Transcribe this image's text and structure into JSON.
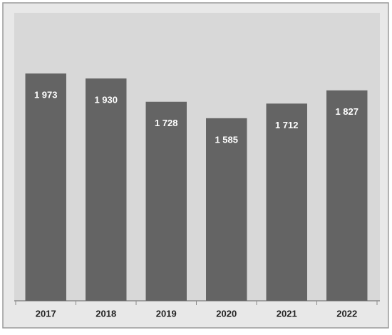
{
  "chart_data": {
    "type": "bar",
    "categories": [
      "2017",
      "2018",
      "2019",
      "2020",
      "2021",
      "2022"
    ],
    "values": [
      1973,
      1930,
      1728,
      1585,
      1712,
      1827
    ],
    "value_labels": [
      "1 973",
      "1 930",
      "1 728",
      "1 585",
      "1 712",
      "1 827"
    ],
    "color": "#646464",
    "ylim": [
      0,
      2500
    ]
  }
}
